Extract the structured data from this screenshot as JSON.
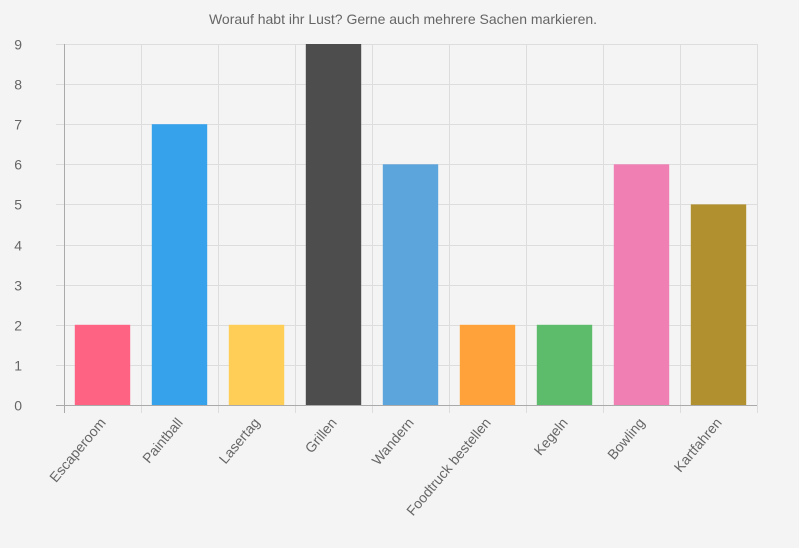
{
  "chart_data": {
    "type": "bar",
    "title": "Worauf habt ihr Lust? Gerne auch mehrere Sachen markieren.",
    "xlabel": "",
    "ylabel": "",
    "categories": [
      "Escaperoom",
      "Paintball",
      "Lasertag",
      "Grillen",
      "Wandern",
      "Foodtruck bestellen",
      "Kegeln",
      "Bowling",
      "Kartfahren"
    ],
    "values": [
      2,
      7,
      2,
      9,
      6,
      2,
      2,
      6,
      5
    ],
    "colors": [
      "#ff6384",
      "#36a2eb",
      "#ffce56",
      "#4d4d4d",
      "#5ba4dc",
      "#ffa23a",
      "#5cbc6b",
      "#f07fb4",
      "#b0902f"
    ],
    "ylim": [
      0,
      9
    ],
    "yticks": [
      0,
      1,
      2,
      3,
      4,
      5,
      6,
      7,
      8,
      9
    ],
    "grid": true,
    "legend": "none"
  }
}
